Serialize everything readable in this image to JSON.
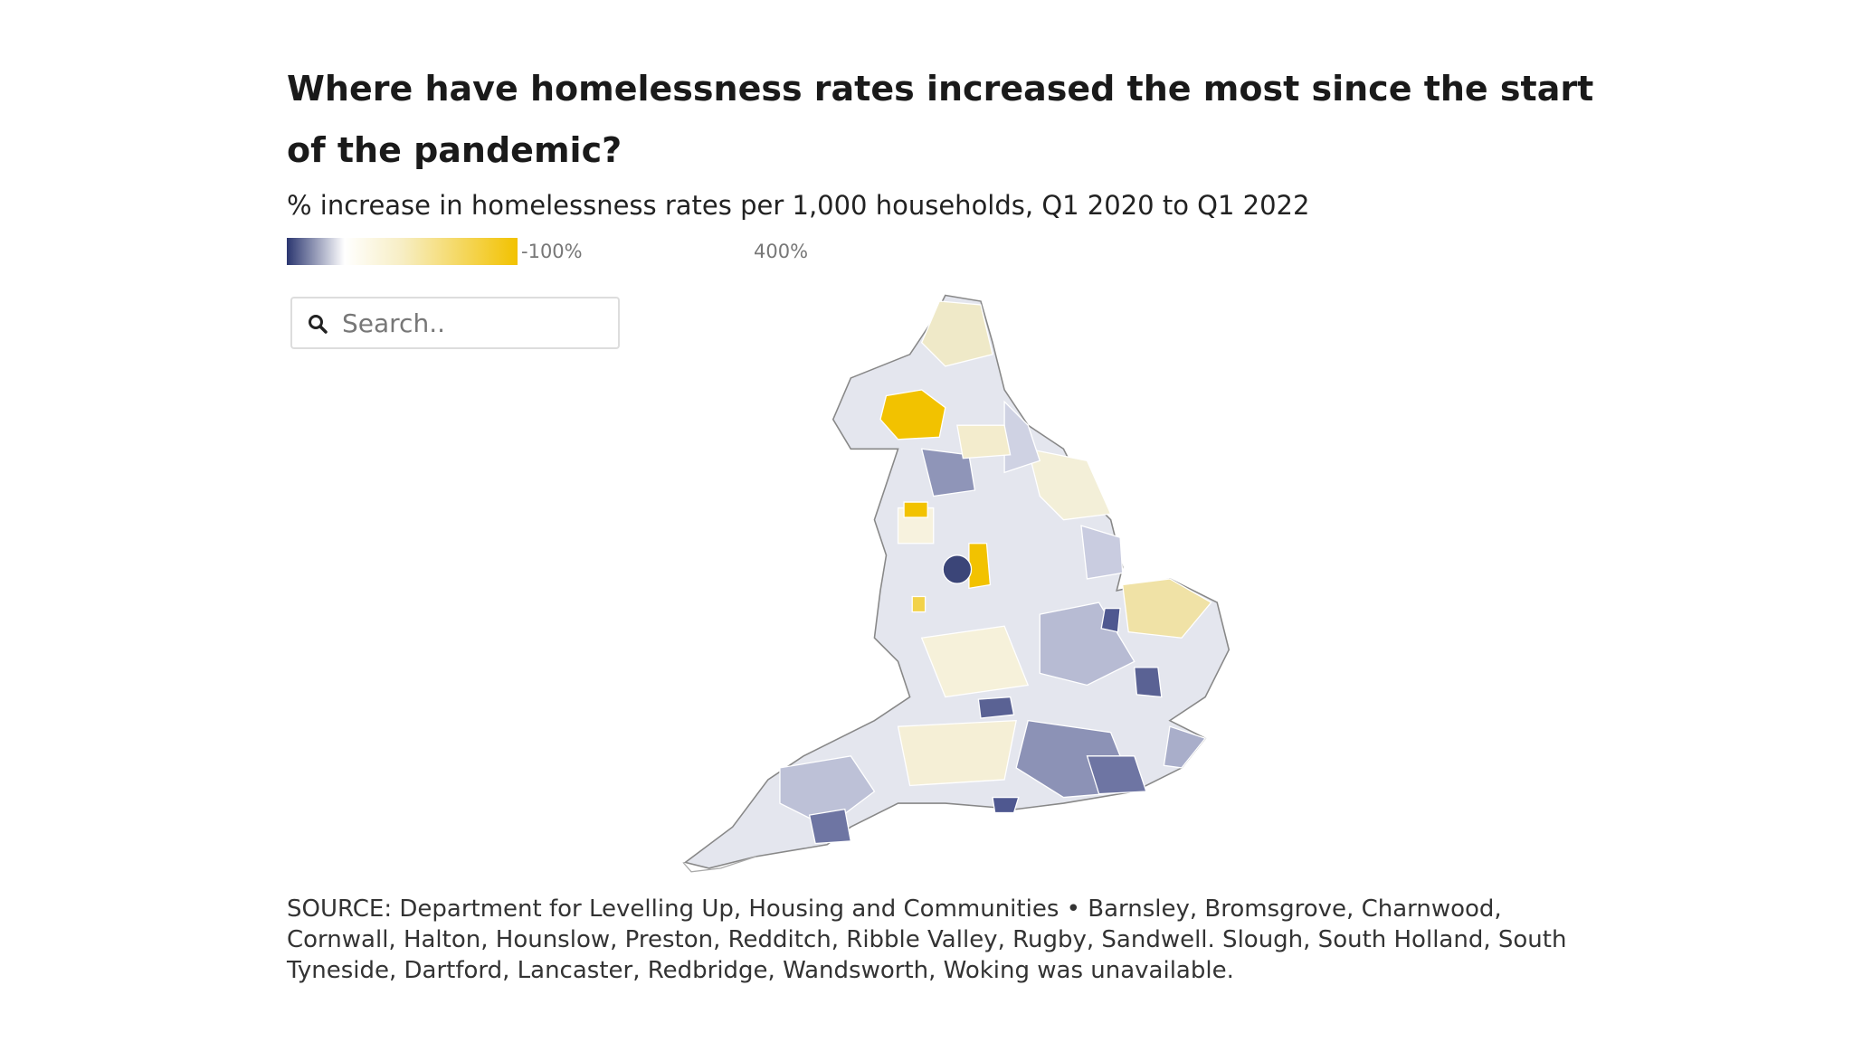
{
  "header": {
    "title": "Where have homelessness rates increased the most since the start of the pandemic?",
    "subtitle": "% increase in homelessness rates per 1,000 households, Q1 2020 to Q1 2022"
  },
  "legend": {
    "min_label": "-100%",
    "max_label": "400%"
  },
  "search": {
    "placeholder": "Search.."
  },
  "footer": {
    "source": "SOURCE: Department for Levelling Up, Housing and Communities • Barnsley, Bromsgrove, Charnwood, Cornwall, Halton, Hounslow, Preston, Redditch, Ribble Valley, Rugby, Sandwell. Slough, South Holland, South Tyneside, Dartford, Lancaster, Redbridge, Wandsworth, Woking was unavailable."
  }
}
